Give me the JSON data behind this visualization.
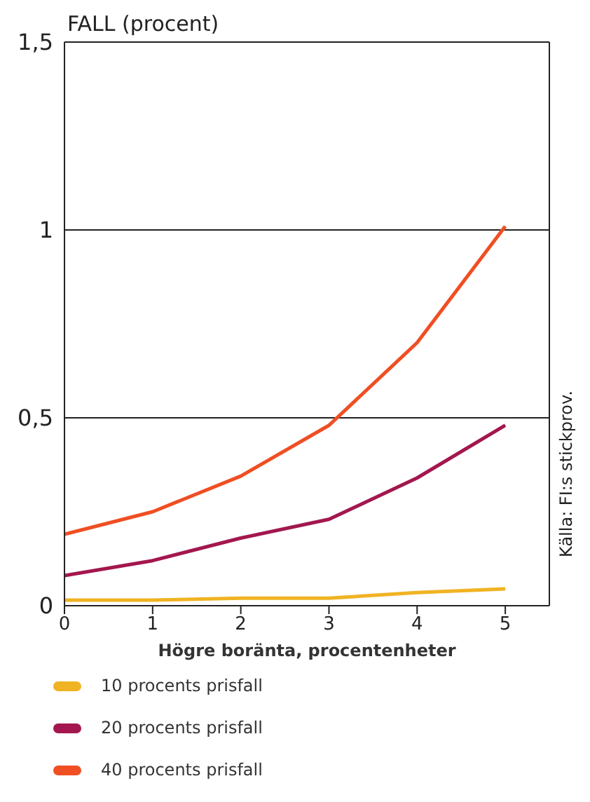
{
  "chart_data": {
    "type": "line",
    "ylabel": "FALL (procent)",
    "xlabel": "Högre boränta, procentenheter",
    "annotations": [
      "Källa: FI:s stickprov."
    ],
    "x": [
      0,
      1,
      2,
      3,
      4,
      5
    ],
    "series": [
      {
        "name": "10 procents prisfall",
        "color": "#f0b323",
        "values": [
          0.015,
          0.015,
          0.02,
          0.02,
          0.035,
          0.045
        ]
      },
      {
        "name": "20 procents prisfall",
        "color": "#a3174e",
        "values": [
          0.08,
          0.12,
          0.18,
          0.23,
          0.34,
          0.48
        ]
      },
      {
        "name": "40 procents prisfall",
        "color": "#f04e23",
        "values": [
          0.19,
          0.25,
          0.345,
          0.48,
          0.7,
          1.01
        ]
      }
    ],
    "xlim": [
      0,
      5.5
    ],
    "xticks": [
      0,
      1,
      2,
      3,
      4,
      5
    ],
    "ylim": [
      0,
      1.5
    ],
    "yticks": [
      0,
      {
        "value": 0.5,
        "label": "0,5"
      },
      1,
      {
        "value": 1.5,
        "label": "1,5"
      }
    ],
    "grid": "y",
    "legend": "bottom",
    "marker": "none",
    "line_style": "solid"
  }
}
